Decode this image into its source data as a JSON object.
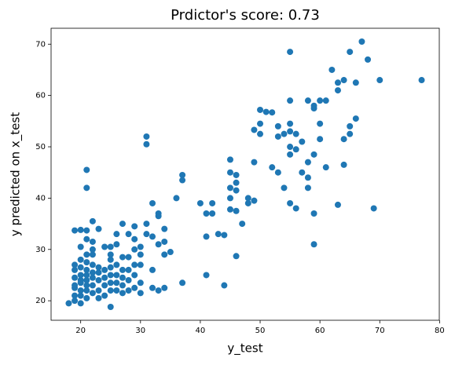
{
  "chart_data": {
    "type": "scatter",
    "title": "Prdictor's score: 0.73",
    "x_label": "y_test",
    "y_label": "y predicted on x_test",
    "color": "#1f77b4",
    "x": [
      18,
      19,
      19,
      19,
      19,
      19,
      19,
      19,
      19,
      20,
      20,
      20,
      20,
      20,
      20,
      20,
      20,
      20,
      20,
      21,
      21,
      21,
      21,
      21,
      21,
      21,
      21,
      21,
      21,
      21,
      21,
      22,
      22,
      22,
      22,
      22,
      22,
      22,
      22,
      22,
      23,
      23,
      23,
      23,
      23,
      23,
      24,
      24,
      24,
      24,
      24,
      25,
      25,
      25,
      25,
      25,
      25,
      25,
      25,
      26,
      26,
      26,
      26,
      26,
      26,
      27,
      27,
      27,
      27,
      27,
      27,
      28,
      28,
      28,
      28,
      28,
      29,
      29,
      29,
      29,
      29,
      29,
      30,
      30,
      30,
      30,
      30,
      31,
      31,
      31,
      31,
      32,
      32,
      32,
      32,
      33,
      33,
      33,
      33,
      34,
      34,
      34,
      34,
      35,
      36,
      37,
      37,
      37,
      40,
      41,
      41,
      41,
      42,
      42,
      43,
      44,
      44,
      45,
      45,
      45,
      45,
      45,
      46,
      46,
      46,
      46,
      46,
      47,
      48,
      48,
      49,
      49,
      49,
      50,
      50,
      50,
      51,
      52,
      52,
      53,
      53,
      53,
      54,
      54,
      55,
      55,
      55,
      55,
      55,
      55,
      55,
      56,
      56,
      56,
      57,
      57,
      58,
      58,
      58,
      58,
      59,
      59,
      59,
      59,
      59,
      60,
      60,
      60,
      61,
      61,
      62,
      63,
      63,
      63,
      64,
      64,
      64,
      65,
      65,
      65,
      66,
      66,
      67,
      68,
      69,
      70,
      77
    ],
    "y": [
      19.5,
      20,
      21,
      22.5,
      23,
      24.5,
      26,
      27,
      33.7,
      19.5,
      21,
      22,
      23.5,
      24,
      25,
      26.5,
      28,
      30.5,
      33.8,
      20.5,
      22,
      23,
      24,
      25,
      26,
      27.5,
      29,
      32,
      33.7,
      42,
      45.5,
      21.5,
      23,
      24.5,
      25.5,
      27,
      29,
      30,
      31.5,
      35.5,
      20.5,
      22,
      24,
      25.5,
      26.5,
      34,
      21,
      23,
      24.5,
      26,
      30.5,
      18.8,
      22,
      23.5,
      25,
      26.5,
      28,
      29,
      30.5,
      22,
      23.5,
      25,
      27,
      31,
      33,
      21.5,
      23,
      24.5,
      26,
      28.5,
      35,
      22,
      24,
      26,
      28.5,
      33,
      22.5,
      25,
      27,
      30,
      32,
      34.5,
      21.5,
      23.5,
      27,
      29,
      30.5,
      35,
      50.5,
      52,
      33,
      22.5,
      26,
      32.5,
      39,
      22,
      31,
      36.5,
      37,
      29,
      31.5,
      34,
      22.5,
      29.5,
      40,
      23.5,
      43.5,
      44.5,
      39,
      25,
      32.5,
      37,
      37,
      39,
      33,
      23,
      32.8,
      40,
      42,
      45,
      47.5,
      37.8,
      28.7,
      37.5,
      41.5,
      43,
      44.5,
      35,
      39,
      40,
      39.5,
      47,
      53.3,
      52.5,
      54.5,
      57.2,
      56.8,
      46,
      56.7,
      45,
      52,
      54,
      42,
      52.5,
      39,
      48.5,
      50,
      53,
      54.5,
      59,
      68.5,
      38,
      49.5,
      52.5,
      45,
      51,
      42,
      44,
      47,
      59,
      31,
      37,
      48.5,
      57.5,
      58,
      51.5,
      54.5,
      59,
      46,
      59,
      65,
      38.7,
      61,
      62.5,
      46.5,
      51.5,
      63,
      52.5,
      54,
      68.5,
      55.5,
      62.5,
      70.5,
      67,
      38,
      63,
      63
    ],
    "xlim": [
      15.05,
      79.95
    ],
    "xticks": [
      20,
      30,
      40,
      50,
      60,
      70,
      80
    ],
    "ylim": [
      16.2,
      73.1
    ],
    "yticks": [
      20,
      30,
      40,
      50,
      60,
      70
    ]
  }
}
